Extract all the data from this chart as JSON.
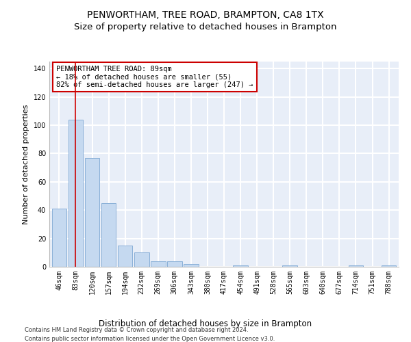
{
  "title": "PENWORTHAM, TREE ROAD, BRAMPTON, CA8 1TX",
  "subtitle": "Size of property relative to detached houses in Brampton",
  "xlabel": "Distribution of detached houses by size in Brampton",
  "ylabel": "Number of detached properties",
  "bar_labels": [
    "46sqm",
    "83sqm",
    "120sqm",
    "157sqm",
    "194sqm",
    "232sqm",
    "269sqm",
    "306sqm",
    "343sqm",
    "380sqm",
    "417sqm",
    "454sqm",
    "491sqm",
    "528sqm",
    "565sqm",
    "603sqm",
    "640sqm",
    "677sqm",
    "714sqm",
    "751sqm",
    "788sqm"
  ],
  "bar_values": [
    41,
    104,
    77,
    45,
    15,
    10,
    4,
    4,
    2,
    0,
    0,
    1,
    0,
    0,
    1,
    0,
    0,
    0,
    1,
    0,
    1
  ],
  "bar_color": "#c5d9f0",
  "bar_edge_color": "#8ab0d8",
  "vline_x": 1,
  "vline_color": "#cc0000",
  "annotation_text": "PENWORTHAM TREE ROAD: 89sqm\n← 18% of detached houses are smaller (55)\n82% of semi-detached houses are larger (247) →",
  "annotation_box_color": "#ffffff",
  "annotation_box_edge": "#cc0000",
  "ylim": [
    0,
    145
  ],
  "yticks": [
    0,
    20,
    40,
    60,
    80,
    100,
    120,
    140
  ],
  "background_color": "#e8eef8",
  "grid_color": "#ffffff",
  "footer": "Contains HM Land Registry data © Crown copyright and database right 2024.\nContains public sector information licensed under the Open Government Licence v3.0.",
  "title_fontsize": 10,
  "subtitle_fontsize": 9.5,
  "xlabel_fontsize": 8.5,
  "ylabel_fontsize": 8,
  "tick_fontsize": 7,
  "annotation_fontsize": 7.5,
  "footer_fontsize": 6
}
